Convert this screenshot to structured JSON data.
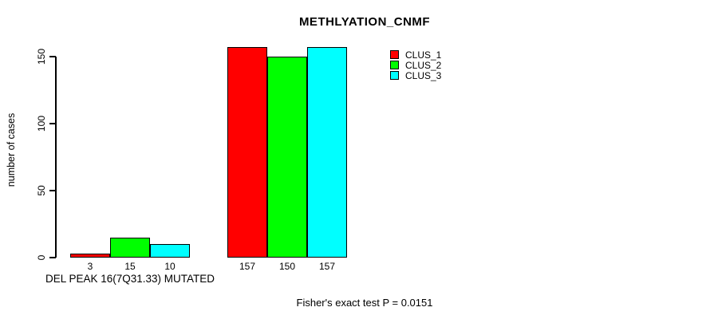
{
  "chart_data": {
    "type": "bar",
    "title": "METHLYATION_CNMF",
    "ylabel": "number of cases",
    "xlabel": "",
    "ylim": [
      0,
      157
    ],
    "yticks": [
      0,
      50,
      100,
      150
    ],
    "grid": false,
    "legend_position": "top-right",
    "background_color": "#ffffff",
    "axis_color": "#000000",
    "series": [
      {
        "name": "CLUS_1",
        "color": "#ff0000"
      },
      {
        "name": "CLUS_2",
        "color": "#00ff00"
      },
      {
        "name": "CLUS_3",
        "color": "#00ffff"
      }
    ],
    "groups": [
      {
        "label": "DEL PEAK 16(7Q31.33) MUTATED",
        "values": [
          3,
          15,
          10
        ]
      },
      {
        "label": "",
        "values": [
          157,
          150,
          157
        ]
      }
    ],
    "annotation": "Fisher's exact test P = 0.0151"
  }
}
